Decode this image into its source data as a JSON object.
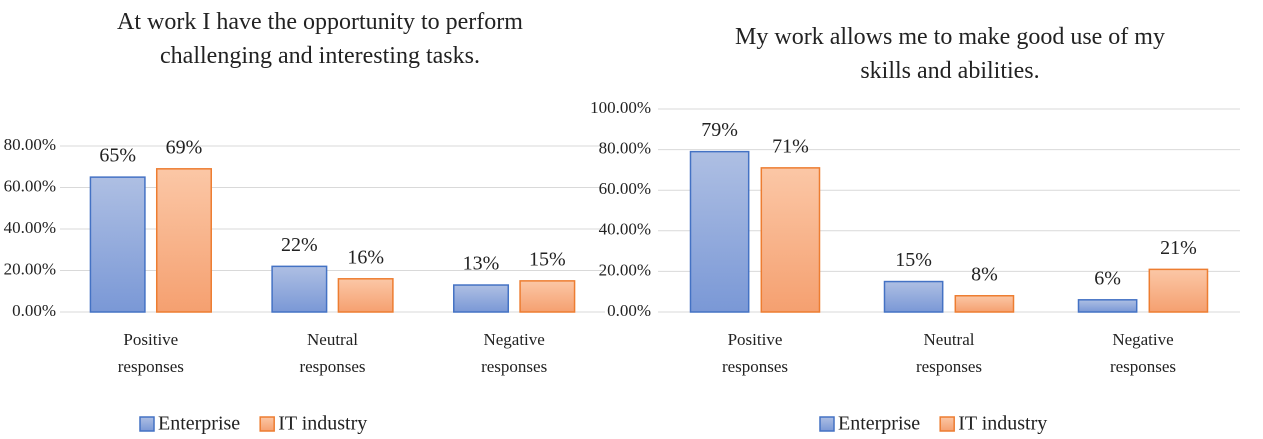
{
  "chart_data": [
    {
      "type": "bar",
      "title": "At work I have the opportunity to perform challenging and interesting tasks.",
      "categories": [
        "Positive responses",
        "Neutral responses",
        "Negative responses"
      ],
      "series": [
        {
          "name": "Enterprise",
          "color": "#4472c4",
          "values": [
            65,
            22,
            13
          ],
          "value_labels": [
            "65%",
            "22%",
            "13%"
          ]
        },
        {
          "name": "IT industry",
          "color": "#ed7d31",
          "values": [
            69,
            16,
            15
          ],
          "value_labels": [
            "69%",
            "16%",
            "15%"
          ]
        }
      ],
      "ylim": [
        0,
        80
      ],
      "yticks": [
        {
          "value": 0,
          "label": "0.00%"
        },
        {
          "value": 20,
          "label": "20.00%"
        },
        {
          "value": 40,
          "label": "40.00%"
        },
        {
          "value": 60,
          "label": "60.00%"
        },
        {
          "value": 80,
          "label": "80.00%"
        }
      ],
      "grid": true,
      "legend": "bottom"
    },
    {
      "type": "bar",
      "title": "My work allows me to make good use of my skills and abilities.",
      "categories": [
        "Positive responses",
        "Neutral responses",
        "Negative responses"
      ],
      "series": [
        {
          "name": "Enterprise",
          "color": "#4472c4",
          "values": [
            79,
            15,
            6
          ],
          "value_labels": [
            "79%",
            "15%",
            "6%"
          ]
        },
        {
          "name": "IT industry",
          "color": "#ed7d31",
          "values": [
            71,
            8,
            21
          ],
          "value_labels": [
            "71%",
            "8%",
            "21%"
          ]
        }
      ],
      "ylim": [
        0,
        100
      ],
      "yticks": [
        {
          "value": 0,
          "label": "0.00%"
        },
        {
          "value": 20,
          "label": "20.00%"
        },
        {
          "value": 40,
          "label": "40.00%"
        },
        {
          "value": 60,
          "label": "60.00%"
        },
        {
          "value": 80,
          "label": "80.00%"
        },
        {
          "value": 100,
          "label": "100.00%"
        }
      ],
      "grid": true,
      "legend": "bottom"
    }
  ]
}
